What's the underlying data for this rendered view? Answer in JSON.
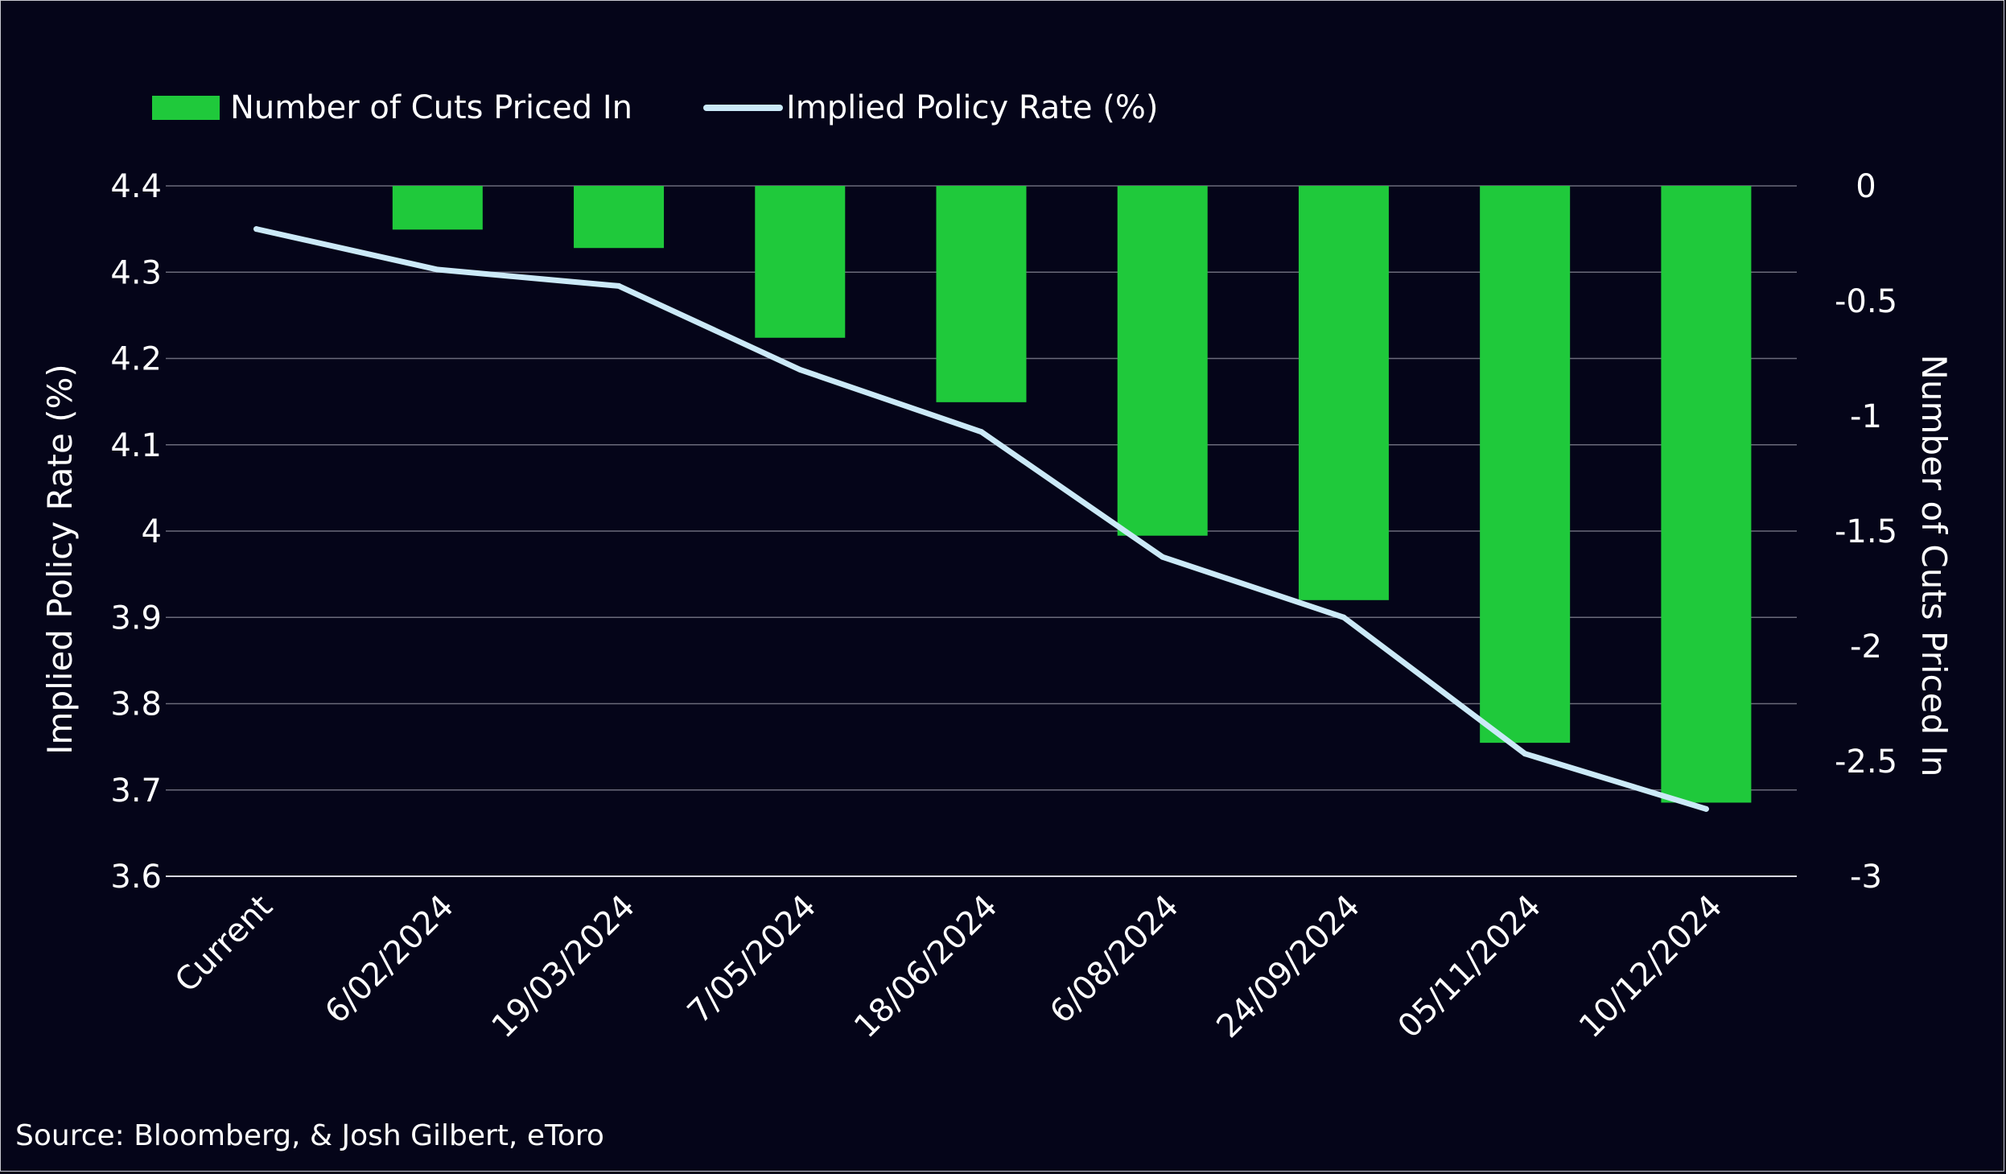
{
  "chart_data": {
    "type": "bar+line",
    "categories": [
      "Current",
      "6/02/2024",
      "19/03/2024",
      "7/05/2024",
      "18/06/2024",
      "6/08/2024",
      "24/09/2024",
      "05/11/2024",
      "10/12/2024"
    ],
    "series": [
      {
        "name": "Number of Cuts Priced In",
        "type": "bar",
        "axis": "right",
        "color": "#1fc93b",
        "values": [
          0,
          -0.19,
          -0.27,
          -0.66,
          -0.94,
          -1.52,
          -1.8,
          -2.42,
          -2.68
        ]
      },
      {
        "name": "Implied Policy Rate (%)",
        "type": "line",
        "axis": "left",
        "color": "#cbe9f7",
        "values": [
          4.35,
          4.303,
          4.284,
          4.187,
          4.115,
          3.97,
          3.9,
          3.742,
          3.678
        ]
      }
    ],
    "ylabel": "Implied Policy Rate (%)",
    "y2label": "Number of Cuts Priced In",
    "ylim": [
      3.6,
      4.4
    ],
    "y2lim": [
      -3,
      0
    ],
    "yticks": [
      "4.4",
      "4.3",
      "4.2",
      "4.1",
      "4",
      "3.9",
      "3.8",
      "3.7",
      "3.6"
    ],
    "y2ticks": [
      "0",
      "-0.5",
      "-1",
      "-1.5",
      "-2",
      "-2.5",
      "-3"
    ],
    "grid": true,
    "legend_position": "top-left"
  },
  "source": "Source: Bloomberg, & Josh Gilbert, eToro",
  "colors": {
    "background": "#050519",
    "grid": "#6b6b7b",
    "text": "#ffffff"
  }
}
